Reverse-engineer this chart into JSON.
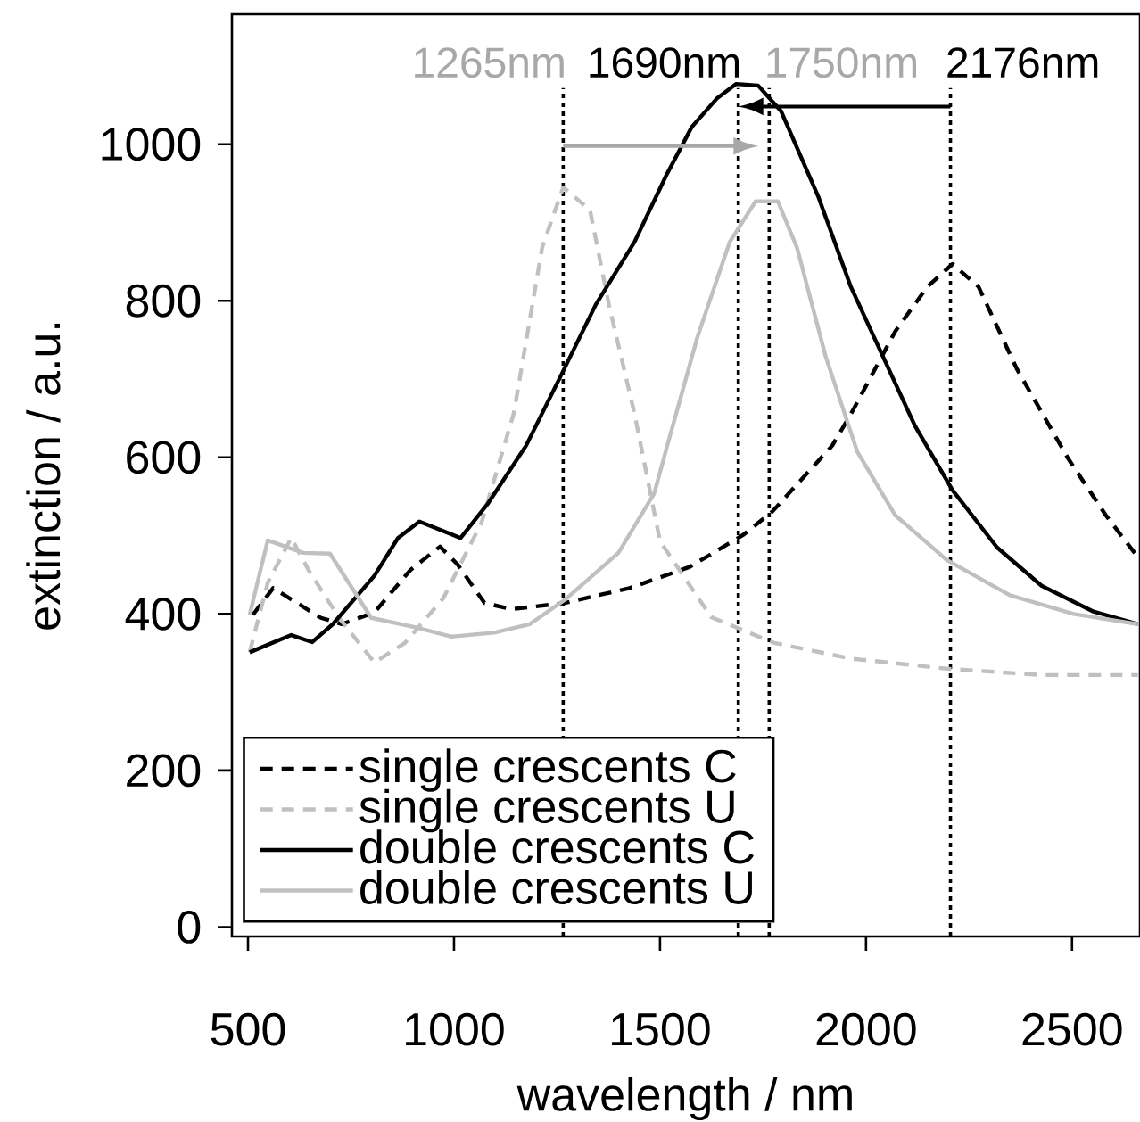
{
  "chart_data": {
    "type": "line",
    "xlabel": "wavelength / nm",
    "ylabel": "extinction / a.u.",
    "xlim": [
      461,
      2665
    ],
    "ylim": [
      -12,
      1166
    ],
    "xticks": [
      500,
      1000,
      1500,
      2000,
      2500
    ],
    "yticks": [
      0,
      200,
      400,
      600,
      800,
      1000
    ],
    "legend": "bottom left",
    "grid": false,
    "marker": "none",
    "series": [
      {
        "name": "single crescents C",
        "color": "#000000",
        "line_style": "dashed",
        "x": [
          512,
          561,
          677,
          728,
          807,
          894,
          966,
          1009,
          1074,
          1139,
          1269,
          1426,
          1572,
          1702,
          1773,
          1918,
          1963,
          2071,
          2149,
          2210,
          2273,
          2366,
          2490,
          2582,
          2665
        ],
        "values": [
          399,
          433,
          395,
          387,
          402,
          456,
          486,
          463,
          414,
          406,
          414,
          433,
          460,
          501,
          531,
          615,
          655,
          761,
          818,
          847,
          818,
          713,
          599,
          526,
          469
        ]
      },
      {
        "name": "single crescents U",
        "color": "#c0c0c0",
        "line_style": "dashed",
        "x": [
          504,
          548,
          605,
          647,
          721,
          807,
          881,
          974,
          1067,
          1145,
          1214,
          1265,
          1330,
          1376,
          1438,
          1500,
          1624,
          1777,
          1963,
          2196,
          2426,
          2660
        ],
        "values": [
          351,
          440,
          497,
          456,
          395,
          338,
          363,
          420,
          517,
          656,
          868,
          945,
          916,
          795,
          656,
          493,
          396,
          363,
          343,
          330,
          322,
          322
        ]
      },
      {
        "name": "double crescents C",
        "color": "#000000",
        "line_style": "solid",
        "x": [
          504,
          605,
          656,
          706,
          807,
          864,
          916,
          1016,
          1081,
          1175,
          1260,
          1344,
          1438,
          1515,
          1577,
          1639,
          1685,
          1738,
          1794,
          1885,
          1963,
          2041,
          2119,
          2210,
          2318,
          2426,
          2552,
          2660
        ],
        "values": [
          351,
          373,
          364,
          387,
          449,
          497,
          518,
          497,
          540,
          615,
          705,
          795,
          875,
          960,
          1022,
          1059,
          1077,
          1075,
          1042,
          932,
          818,
          729,
          640,
          558,
          485,
          436,
          403,
          387
        ]
      },
      {
        "name": "double crescents U",
        "color": "#c0c0c0",
        "line_style": "solid",
        "x": [
          504,
          548,
          634,
          699,
          799,
          907,
          994,
          1097,
          1184,
          1269,
          1399,
          1486,
          1515,
          1591,
          1669,
          1732,
          1786,
          1833,
          1902,
          1979,
          2071,
          2196,
          2349,
          2504,
          2660
        ],
        "values": [
          399,
          494,
          478,
          477,
          395,
          383,
          371,
          376,
          387,
          418,
          478,
          554,
          610,
          754,
          875,
          927,
          927,
          867,
          729,
          607,
          526,
          469,
          424,
          400,
          387
        ]
      }
    ],
    "ref_lines": [
      {
        "axis": "x",
        "value": 1265,
        "label": "1265nm",
        "line_style": "dotted"
      },
      {
        "axis": "x",
        "value": 1690,
        "label": "1690nm",
        "line_style": "dotted"
      },
      {
        "axis": "x",
        "value": 1765,
        "label": "1750nm",
        "line_style": "dotted"
      },
      {
        "axis": "x",
        "value": 2205,
        "label": "2176nm",
        "line_style": "dotted"
      }
    ]
  }
}
